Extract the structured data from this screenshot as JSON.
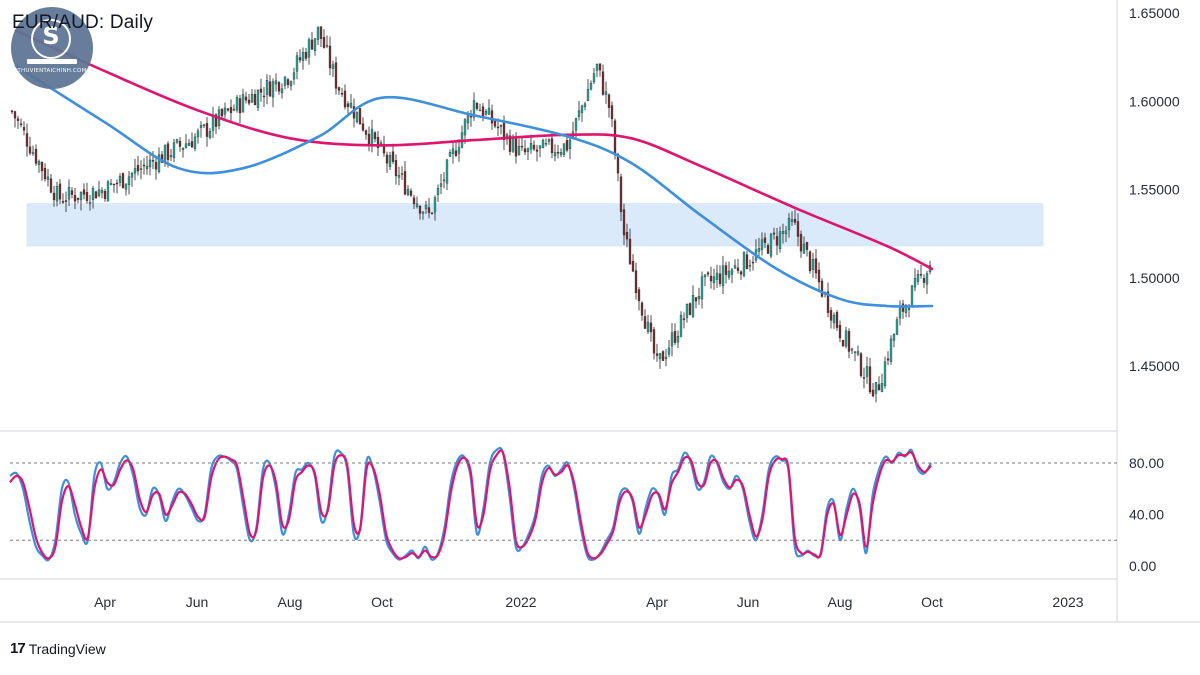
{
  "header": {
    "title": "EUR/AUD: Daily"
  },
  "watermark": {
    "text": "THUVIENTAICHINH.COM",
    "letter": "S"
  },
  "brand": {
    "icon": "17",
    "label": "TradingView"
  },
  "colors": {
    "candle_up": "#26a69a",
    "candle_down": "#7a2e2e",
    "ma_fast": "#3d8fe0",
    "ma_slow": "#e0136e",
    "zone": "#dbeafb",
    "stoch_k": "#3d8fe0",
    "stoch_d": "#e0136e"
  },
  "chart_data": [
    {
      "type": "line",
      "title": "EUR/AUD: Daily",
      "xlabel": "",
      "ylabel": "",
      "ylim": [
        1.425,
        1.655
      ],
      "y_ticks": [
        "1.65000",
        "1.60000",
        "1.55000",
        "1.50000",
        "1.45000"
      ],
      "x_ticks": [
        "Apr",
        "Jun",
        "Aug",
        "Oct",
        "2022",
        "Apr",
        "Jun",
        "Aug",
        "Oct",
        "2023"
      ],
      "grid": false,
      "annotations": [
        {
          "type": "support_zone",
          "y_range": [
            1.518,
            1.542
          ],
          "x_range": [
            "2021-02-20",
            "2022-11-15"
          ]
        }
      ],
      "series": [
        {
          "name": "",
          "kind": "price",
          "x": [
            "2021-02-01",
            "2021-03-01",
            "2021-04-01",
            "2021-05-01",
            "2021-06-01",
            "2021-07-01",
            "2021-08-01",
            "2021-08-20",
            "2021-09-01",
            "2021-10-01",
            "2021-11-01",
            "2021-12-01",
            "2022-01-01",
            "2022-02-01",
            "2022-02-20",
            "2022-03-01",
            "2022-03-10",
            "2022-04-01",
            "2022-05-01",
            "2022-06-01",
            "2022-07-01",
            "2022-08-01",
            "2022-08-25",
            "2022-09-10",
            "2022-10-01"
          ],
          "values": [
            1.59,
            1.545,
            1.55,
            1.565,
            1.58,
            1.6,
            1.615,
            1.64,
            1.61,
            1.57,
            1.535,
            1.6,
            1.57,
            1.575,
            1.62,
            1.595,
            1.525,
            1.45,
            1.495,
            1.51,
            1.53,
            1.47,
            1.435,
            1.48,
            1.51
          ]
        },
        {
          "name": "",
          "kind": "ma_fast",
          "x": [
            "2021-02-01",
            "2021-04-01",
            "2021-05-20",
            "2021-07-01",
            "2021-08-20",
            "2021-10-01",
            "2021-12-01",
            "2022-02-01",
            "2022-03-15",
            "2022-05-01",
            "2022-06-20",
            "2022-08-01",
            "2022-09-01",
            "2022-10-01"
          ],
          "values": [
            1.62,
            1.588,
            1.562,
            1.562,
            1.58,
            1.602,
            1.592,
            1.58,
            1.565,
            1.535,
            1.505,
            1.488,
            1.484,
            1.484
          ]
        },
        {
          "name": "",
          "kind": "ma_slow",
          "x": [
            "2021-02-01",
            "2021-04-01",
            "2021-06-01",
            "2021-08-01",
            "2021-10-01",
            "2021-12-01",
            "2022-02-01",
            "2022-03-15",
            "2022-05-01",
            "2022-07-01",
            "2022-09-01",
            "2022-10-01"
          ],
          "values": [
            1.64,
            1.617,
            1.595,
            1.579,
            1.575,
            1.578,
            1.581,
            1.579,
            1.563,
            1.54,
            1.518,
            1.505
          ]
        }
      ]
    },
    {
      "type": "line",
      "title": "",
      "ylim": [
        -5,
        110
      ],
      "y_ticks": [
        "80.00",
        "40.00",
        "0.00"
      ],
      "levels": [
        80,
        20
      ],
      "series": [
        {
          "name": "",
          "kind": "stoch_k",
          "values": [
            70,
            72,
            60,
            35,
            15,
            8,
            5,
            20,
            60,
            65,
            40,
            25,
            20,
            70,
            80,
            60,
            65,
            80,
            85,
            70,
            45,
            40,
            60,
            55,
            35,
            50,
            60,
            55,
            45,
            35,
            40,
            75,
            85,
            85,
            82,
            75,
            45,
            20,
            30,
            75,
            80,
            60,
            25,
            40,
            72,
            75,
            80,
            70,
            35,
            45,
            85,
            88,
            75,
            25,
            30,
            82,
            75,
            50,
            20,
            10,
            5,
            8,
            12,
            6,
            15,
            5,
            10,
            30,
            65,
            82,
            85,
            70,
            25,
            45,
            80,
            90,
            88,
            55,
            15,
            15,
            25,
            40,
            70,
            78,
            70,
            75,
            80,
            60,
            30,
            8,
            5,
            10,
            20,
            30,
            55,
            60,
            50,
            25,
            45,
            60,
            55,
            40,
            70,
            75,
            88,
            80,
            60,
            65,
            85,
            80,
            65,
            60,
            70,
            60,
            35,
            20,
            40,
            75,
            85,
            82,
            75,
            15,
            8,
            12,
            8,
            10,
            45,
            50,
            20,
            45,
            60,
            45,
            10,
            55,
            75,
            85,
            80,
            88,
            85,
            90,
            75,
            72,
            80
          ]
        },
        {
          "name": "",
          "kind": "stoch_d",
          "values": [
            65,
            70,
            65,
            45,
            22,
            10,
            6,
            15,
            50,
            62,
            48,
            30,
            22,
            60,
            75,
            65,
            63,
            75,
            82,
            75,
            52,
            42,
            55,
            56,
            40,
            47,
            57,
            56,
            48,
            38,
            38,
            68,
            82,
            85,
            83,
            78,
            52,
            25,
            28,
            68,
            78,
            65,
            32,
            36,
            66,
            73,
            78,
            72,
            42,
            43,
            78,
            86,
            78,
            33,
            29,
            76,
            76,
            56,
            25,
            12,
            6,
            7,
            10,
            7,
            12,
            7,
            9,
            25,
            58,
            78,
            84,
            74,
            32,
            40,
            74,
            86,
            88,
            62,
            20,
            15,
            22,
            36,
            64,
            76,
            71,
            73,
            78,
            64,
            35,
            11,
            6,
            9,
            17,
            27,
            50,
            58,
            52,
            30,
            40,
            55,
            56,
            44,
            64,
            73,
            84,
            82,
            65,
            63,
            80,
            81,
            68,
            61,
            67,
            62,
            40,
            23,
            36,
            70,
            82,
            83,
            77,
            22,
            10,
            11,
            9,
            9,
            40,
            48,
            24,
            40,
            56,
            48,
            15,
            48,
            70,
            82,
            81,
            86,
            86,
            88,
            78,
            73,
            78
          ]
        }
      ]
    }
  ]
}
